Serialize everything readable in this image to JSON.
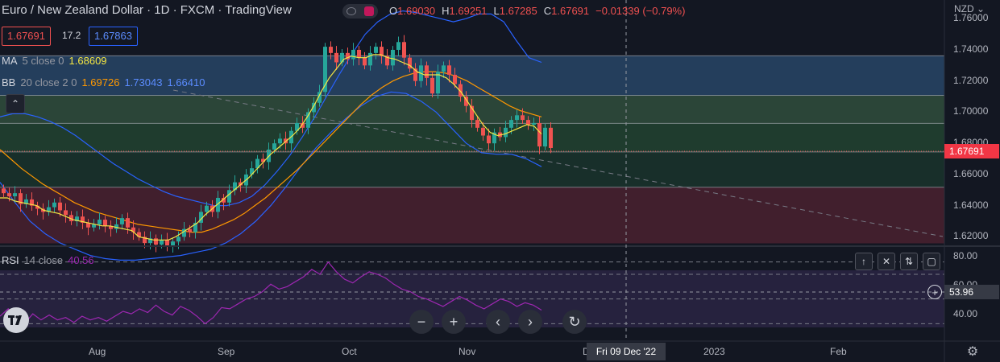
{
  "header": {
    "title": "Euro / New Zealand Dollar · 1D · FXCM · TradingView",
    "ohlc": {
      "o_label": "O",
      "o_value": "1.69030",
      "h_label": "H",
      "h_value": "1.69251",
      "l_label": "L",
      "l_value": "1.67285",
      "c_label": "C",
      "c_value": "1.67691",
      "change": "−0.01339 (−0.79%)"
    },
    "bid": "1.67691",
    "spread": "17.2",
    "ask": "1.67863"
  },
  "indicators": {
    "ma_label": "MA",
    "ma_params": "5 close 0",
    "ma_value": "1.68609",
    "bb_label": "BB",
    "bb_params": "20 close 2 0",
    "bb_basis": "1.69726",
    "bb_upper": "1.73043",
    "bb_lower": "1.66410",
    "rsi_label": "RSI",
    "rsi_params": "14 close",
    "rsi_value": "40.56"
  },
  "price_axis": {
    "currency": "NZD",
    "ticks": [
      "1.76000",
      "1.74000",
      "1.72000",
      "1.70000",
      "1.68000",
      "1.66000",
      "1.64000",
      "1.62000"
    ],
    "current_price": "1.67691"
  },
  "rsi_axis": {
    "ticks": [
      "80.00",
      "60.00",
      "40.00"
    ],
    "crosshair_value": "53.96"
  },
  "time_axis": {
    "labels": [
      "Aug",
      "Sep",
      "Oct",
      "Nov",
      "D",
      "2023",
      "Feb"
    ],
    "crosshair_date": "Fri 09 Dec '22"
  },
  "colors": {
    "up": "#26a69a",
    "down": "#ef5350",
    "ma": "#f5e642",
    "bb_basis": "#ff9800",
    "bb_band": "#2962ff",
    "rsi": "#9c27b0",
    "background": "#131722"
  },
  "chart_data": {
    "type": "candlestick",
    "symbol": "EURNZD",
    "interval": "1D",
    "ylim": [
      1.614,
      1.772
    ],
    "zones": [
      {
        "from": 1.7108,
        "to": 1.7362,
        "color": "#3a6ea5"
      },
      {
        "from": 1.6928,
        "to": 1.7108,
        "color": "#4a7f55"
      },
      {
        "from": 1.6745,
        "to": 1.6928,
        "color": "#2f6b3f"
      },
      {
        "from": 1.6518,
        "to": 1.6745,
        "color": "#1f4d35"
      },
      {
        "from": 1.6158,
        "to": 1.6518,
        "color": "#7a2a3c"
      }
    ],
    "closes": [
      1.648,
      1.646,
      1.648,
      1.641,
      1.644,
      1.64,
      1.638,
      1.636,
      1.639,
      1.642,
      1.637,
      1.634,
      1.63,
      1.633,
      1.629,
      1.626,
      1.628,
      1.631,
      1.627,
      1.625,
      1.628,
      1.632,
      1.626,
      1.623,
      1.62,
      1.616,
      1.619,
      1.615,
      1.618,
      1.614,
      1.617,
      1.62,
      1.625,
      1.623,
      1.629,
      1.636,
      1.64,
      1.636,
      1.645,
      1.642,
      1.65,
      1.655,
      1.653,
      1.66,
      1.664,
      1.67,
      1.668,
      1.676,
      1.68,
      1.683,
      1.68,
      1.688,
      1.693,
      1.69,
      1.7,
      1.706,
      1.713,
      1.742,
      1.738,
      1.732,
      1.738,
      1.734,
      1.74,
      1.735,
      1.73,
      1.738,
      1.742,
      1.736,
      1.73,
      1.74,
      1.745,
      1.735,
      1.728,
      1.72,
      1.73,
      1.722,
      1.712,
      1.726,
      1.73,
      1.724,
      1.718,
      1.71,
      1.704,
      1.695,
      1.69,
      1.685,
      1.68,
      1.687,
      1.684,
      1.69,
      1.695,
      1.698,
      1.695,
      1.692,
      1.693,
      1.678,
      1.69,
      1.677
    ],
    "ma": [
      1.645,
      1.645,
      1.643,
      1.642,
      1.641,
      1.64,
      1.637,
      1.636,
      1.635,
      1.633,
      1.631,
      1.63,
      1.629,
      1.628,
      1.627,
      1.627,
      1.626,
      1.625,
      1.624,
      1.62,
      1.619,
      1.618,
      1.618,
      1.618,
      1.62,
      1.623,
      1.626,
      1.629,
      1.634,
      1.638,
      1.642,
      1.646,
      1.65,
      1.654,
      1.658,
      1.663,
      1.668,
      1.673,
      1.677,
      1.681,
      1.685,
      1.69,
      1.697,
      1.705,
      1.714,
      1.722,
      1.728,
      1.734,
      1.736,
      1.735,
      1.735,
      1.737,
      1.737,
      1.735,
      1.734,
      1.732,
      1.73,
      1.726,
      1.724,
      1.724,
      1.724,
      1.722,
      1.718,
      1.713,
      1.706,
      1.699,
      1.692,
      1.687,
      1.685,
      1.686,
      1.688,
      1.69,
      1.692,
      1.691,
      1.686
    ],
    "bb_basis": [
      1.676,
      1.67,
      1.664,
      1.659,
      1.654,
      1.65,
      1.646,
      1.642,
      1.639,
      1.636,
      1.634,
      1.632,
      1.63,
      1.628,
      1.627,
      1.626,
      1.625,
      1.624,
      1.623,
      1.623,
      1.625,
      1.628,
      1.631,
      1.635,
      1.64,
      1.645,
      1.651,
      1.657,
      1.663,
      1.67,
      1.677,
      1.684,
      1.691,
      1.698,
      1.705,
      1.711,
      1.716,
      1.72,
      1.723,
      1.725,
      1.726,
      1.726,
      1.725,
      1.723,
      1.72,
      1.716,
      1.712,
      1.708,
      1.704,
      1.701,
      1.699,
      1.697
    ],
    "bb_upper": [
      1.697,
      1.699,
      1.699,
      1.697,
      1.694,
      1.69,
      1.685,
      1.679,
      1.673,
      1.667,
      1.662,
      1.657,
      1.653,
      1.649,
      1.646,
      1.644,
      1.642,
      1.64,
      1.64,
      1.642,
      1.646,
      1.653,
      1.662,
      1.672,
      1.684,
      1.697,
      1.711,
      1.725,
      1.738,
      1.75,
      1.758,
      1.763,
      1.765,
      1.764,
      1.762,
      1.76,
      1.758,
      1.76,
      1.763,
      1.763,
      1.758,
      1.746,
      1.735,
      1.732
    ],
    "bb_lower": [
      1.655,
      1.642,
      1.63,
      1.622,
      1.616,
      1.612,
      1.608,
      1.606,
      1.605,
      1.605,
      1.606,
      1.607,
      1.608,
      1.61,
      1.612,
      1.616,
      1.622,
      1.63,
      1.64,
      1.652,
      1.665,
      1.677,
      1.687,
      1.696,
      1.704,
      1.71,
      1.713,
      1.712,
      1.707,
      1.7,
      1.69,
      1.68,
      1.674,
      1.673,
      1.673,
      1.67,
      1.665
    ],
    "rsi": [
      36,
      42,
      35,
      30,
      38,
      33,
      37,
      33,
      35,
      31,
      36,
      33,
      35,
      32,
      36,
      40,
      38,
      42,
      39,
      45,
      40,
      37,
      44,
      41,
      36,
      30,
      35,
      43,
      42,
      46,
      50,
      52,
      56,
      62,
      58,
      60,
      64,
      68,
      74,
      70,
      80,
      72,
      66,
      63,
      68,
      72,
      70,
      67,
      62,
      58,
      56,
      52,
      50,
      47,
      44,
      48,
      52,
      49,
      45,
      42,
      46,
      50,
      48,
      44,
      47,
      45,
      41
    ],
    "rsi_levels": [
      70,
      50,
      30
    ],
    "rsi_ylim": [
      25,
      85
    ]
  }
}
